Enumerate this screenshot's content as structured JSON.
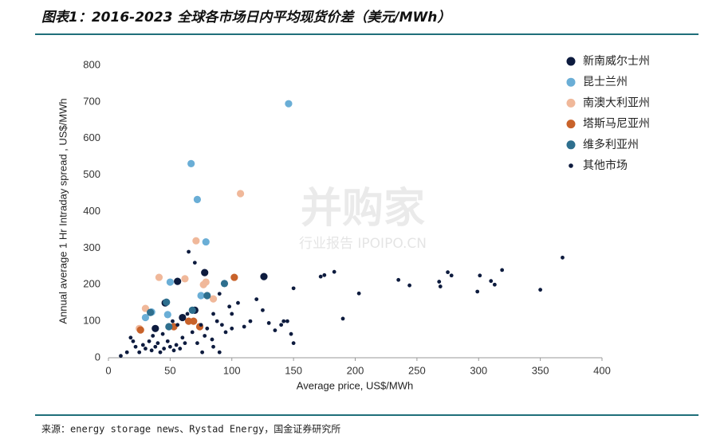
{
  "chart_data": {
    "type": "scatter",
    "title": "图表1：2016-2023 全球各市场日内平均现货价差（美元/MWh）",
    "xlabel": "Average price, US$/MWh",
    "ylabel": "Annual average 1 Hr Intraday spread , US$/MWh",
    "source": "来源：energy storage news、Rystad Energy，国金证券研究所",
    "watermark": "并购家",
    "watermark_sub": "行业报告 IPOIPO.CN",
    "xlim": [
      0,
      400
    ],
    "xticks": [
      0,
      50,
      100,
      150,
      200,
      250,
      300,
      350,
      400
    ],
    "ylim": [
      0,
      800
    ],
    "yticks": [
      0,
      100,
      200,
      300,
      400,
      500,
      600,
      700,
      800
    ],
    "grid": false,
    "legend": "upper right",
    "series": [
      {
        "name": "新南威尔士州",
        "color": "#0d1b3e",
        "x": [
          126,
          78,
          56,
          60,
          46,
          38,
          70
        ],
        "values": [
          222,
          233,
          209,
          110,
          150,
          80,
          130
        ]
      },
      {
        "name": "昆士兰州",
        "color": "#6aaed6",
        "x": [
          146,
          67,
          72,
          79,
          50,
          35,
          48,
          75,
          30
        ],
        "values": [
          695,
          531,
          433,
          317,
          207,
          125,
          118,
          170,
          110
        ]
      },
      {
        "name": "南澳大利亚州",
        "color": "#f0b89a",
        "x": [
          107,
          71,
          41,
          62,
          77,
          79,
          85,
          30,
          25
        ],
        "values": [
          449,
          320,
          220,
          216,
          200,
          207,
          161,
          135,
          80
        ]
      },
      {
        "name": "塔斯马尼亚州",
        "color": "#c8622a",
        "x": [
          102,
          65,
          69,
          53,
          26,
          74
        ],
        "values": [
          220,
          100,
          100,
          85,
          76,
          85
        ]
      },
      {
        "name": "维多利亚州",
        "color": "#2e6f8e",
        "x": [
          94,
          80,
          68,
          47,
          34,
          49
        ],
        "values": [
          203,
          170,
          130,
          152,
          124,
          85
        ]
      },
      {
        "name": "其他市场",
        "color": "#0d1b3e",
        "x": [
          368,
          350,
          319,
          313,
          310,
          301,
          299,
          278,
          275,
          269,
          268,
          244,
          235,
          203,
          190,
          183,
          175,
          172,
          150,
          150,
          148,
          145,
          140,
          130,
          120,
          115,
          110,
          100,
          100,
          95,
          92,
          90,
          88,
          85,
          84,
          80,
          78,
          75,
          72,
          70,
          68,
          65,
          62,
          60,
          58,
          55,
          53,
          50,
          48,
          45,
          42,
          40,
          38,
          35,
          33,
          30,
          28,
          25,
          22,
          20,
          18,
          15,
          10,
          36,
          44,
          52,
          56,
          64,
          85,
          76,
          90,
          98,
          105,
          125,
          135,
          142
        ],
        "values": [
          274,
          186,
          240,
          200,
          210,
          225,
          181,
          225,
          234,
          195,
          208,
          198,
          213,
          176,
          107,
          235,
          226,
          222,
          190,
          40,
          65,
          100,
          90,
          95,
          160,
          100,
          85,
          120,
          80,
          70,
          90,
          175,
          100,
          120,
          50,
          80,
          60,
          90,
          40,
          260,
          70,
          290,
          40,
          55,
          25,
          35,
          20,
          30,
          45,
          25,
          15,
          40,
          30,
          20,
          45,
          25,
          35,
          15,
          30,
          45,
          55,
          15,
          5,
          60,
          65,
          100,
          90,
          120,
          30,
          15,
          15,
          140,
          150,
          130,
          75,
          100
        ]
      }
    ]
  }
}
